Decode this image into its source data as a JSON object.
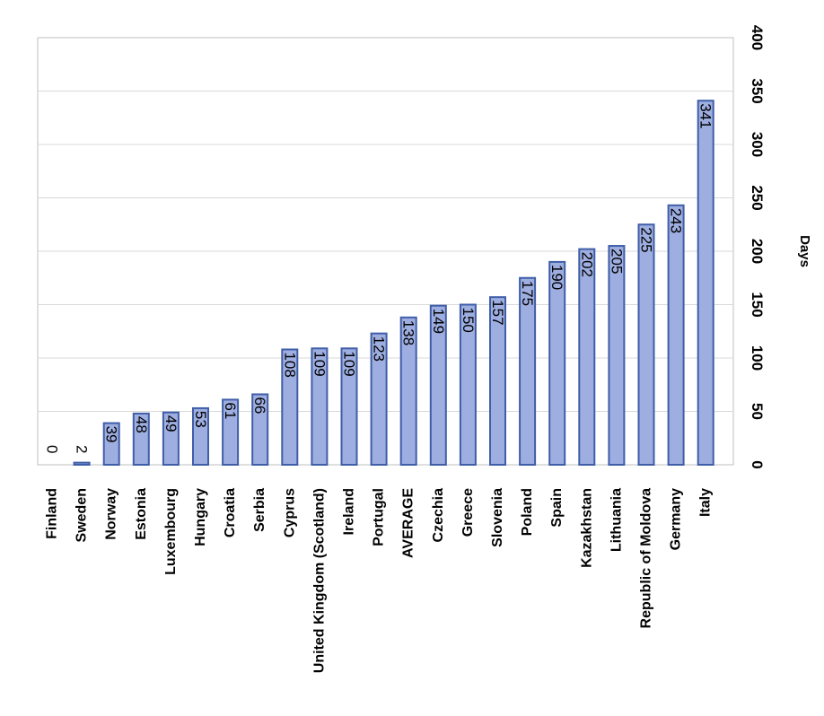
{
  "chart_data": {
    "type": "bar",
    "categories": [
      "Finland",
      "Sweden",
      "Norway",
      "Estonia",
      "Luxembourg",
      "Hungary",
      "Croatia",
      "Serbia",
      "Cyprus",
      "United Kingdom (Scotland)",
      "Ireland",
      "Portugal",
      "AVERAGE",
      "Czechia",
      "Greece",
      "Slovenia",
      "Poland",
      "Spain",
      "Kazakhstan",
      "Lithuania",
      "Republic of Moldova",
      "Germany",
      "Italy"
    ],
    "values": [
      0,
      2,
      39,
      48,
      49,
      53,
      61,
      66,
      108,
      109,
      109,
      123,
      138,
      149,
      150,
      157,
      175,
      190,
      202,
      205,
      225,
      243,
      341
    ],
    "data_labels": [
      "0",
      "2",
      "39",
      "48",
      "49",
      "53",
      "61",
      "66",
      "108",
      "109",
      "109",
      "123",
      "138",
      "149",
      "150",
      "157",
      "175",
      "190",
      "202",
      "205",
      "225",
      "243",
      "341"
    ],
    "title": "",
    "xlabel": "",
    "ylabel": "Days",
    "ylim": [
      0,
      400
    ],
    "yticks": [
      "0",
      "50",
      "100",
      "150",
      "200",
      "250",
      "300",
      "350",
      "400"
    ],
    "grid": true,
    "orientation": "image rotated 90 degrees clockwise",
    "bar_fill": "#9eaee0",
    "bar_stroke": "#3f5ea8",
    "gridline_color": "#d9d9d9",
    "frame_color": "#bfbfbf"
  }
}
